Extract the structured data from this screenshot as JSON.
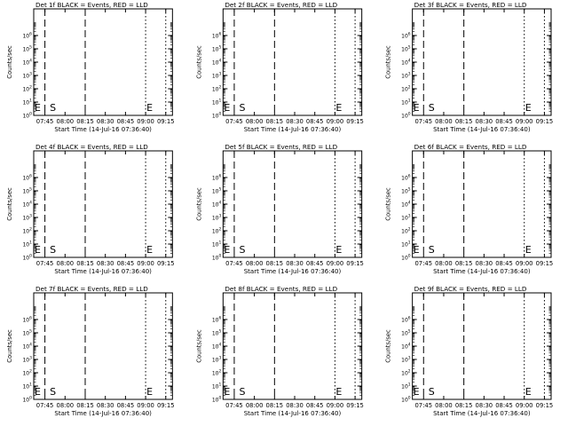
{
  "panel_layout": {
    "rows": 3,
    "cols": 3
  },
  "chart_data": [
    {
      "type": "line",
      "title": "Det 1f BLACK = Events, RED = LLD",
      "xlabel": "Start Time (14-Jul-16 07:36:40)",
      "ylabel": "Counts/sec",
      "xlim": [
        "07:36:40",
        "09:20:00"
      ],
      "yscale": "log",
      "ylim": [
        1,
        100000000
      ],
      "x_ticks": [
        "07:45",
        "08:00",
        "08:15",
        "08:30",
        "08:45",
        "09:00",
        "09:15"
      ],
      "y_ticks": [
        "10^0",
        "10^1",
        "10^2",
        "10^3",
        "10^4",
        "10^5",
        "10^6"
      ],
      "vlines": [
        {
          "time": "07:45",
          "style": "dashed"
        },
        {
          "time": "08:15",
          "style": "dashed"
        },
        {
          "time": "09:00",
          "style": "dotted"
        },
        {
          "time": "09:15",
          "style": "dotted"
        }
      ],
      "annotations": [
        {
          "text": "E",
          "time": "07:36:40"
        },
        {
          "text": "S",
          "time": "07:48"
        },
        {
          "text": "E",
          "time": "09:00"
        }
      ],
      "series": []
    },
    {
      "type": "line",
      "title": "Det 2f BLACK = Events, RED = LLD",
      "xlabel": "Start Time (14-Jul-16 07:36:40)",
      "ylabel": "Counts/sec",
      "xlim": [
        "07:36:40",
        "09:20:00"
      ],
      "yscale": "log",
      "ylim": [
        1,
        100000000
      ],
      "x_ticks": [
        "07:45",
        "08:00",
        "08:15",
        "08:30",
        "08:45",
        "09:00",
        "09:15"
      ],
      "y_ticks": [
        "10^0",
        "10^1",
        "10^2",
        "10^3",
        "10^4",
        "10^5",
        "10^6"
      ],
      "vlines": [
        {
          "time": "07:45",
          "style": "dashed"
        },
        {
          "time": "08:15",
          "style": "dashed"
        },
        {
          "time": "09:00",
          "style": "dotted"
        },
        {
          "time": "09:15",
          "style": "dotted"
        }
      ],
      "annotations": [
        {
          "text": "E",
          "time": "07:36:40"
        },
        {
          "text": "S",
          "time": "07:48"
        },
        {
          "text": "E",
          "time": "09:00"
        }
      ],
      "series": []
    },
    {
      "type": "line",
      "title": "Det 3f BLACK = Events, RED = LLD",
      "xlabel": "Start Time (14-Jul-16 07:36:40)",
      "ylabel": "Counts/sec",
      "xlim": [
        "07:36:40",
        "09:20:00"
      ],
      "yscale": "log",
      "ylim": [
        1,
        100000000
      ],
      "x_ticks": [
        "07:45",
        "08:00",
        "08:15",
        "08:30",
        "08:45",
        "09:00",
        "09:15"
      ],
      "y_ticks": [
        "10^0",
        "10^1",
        "10^2",
        "10^3",
        "10^4",
        "10^5",
        "10^6"
      ],
      "vlines": [
        {
          "time": "07:45",
          "style": "dashed"
        },
        {
          "time": "08:15",
          "style": "dashed"
        },
        {
          "time": "09:00",
          "style": "dotted"
        },
        {
          "time": "09:15",
          "style": "dotted"
        }
      ],
      "annotations": [
        {
          "text": "E",
          "time": "07:36:40"
        },
        {
          "text": "S",
          "time": "07:48"
        },
        {
          "text": "E",
          "time": "09:00"
        }
      ],
      "series": []
    },
    {
      "type": "line",
      "title": "Det 4f BLACK = Events, RED = LLD",
      "xlabel": "Start Time (14-Jul-16 07:36:40)",
      "ylabel": "Counts/sec",
      "xlim": [
        "07:36:40",
        "09:20:00"
      ],
      "yscale": "log",
      "ylim": [
        1,
        100000000
      ],
      "x_ticks": [
        "07:45",
        "08:00",
        "08:15",
        "08:30",
        "08:45",
        "09:00",
        "09:15"
      ],
      "y_ticks": [
        "10^0",
        "10^1",
        "10^2",
        "10^3",
        "10^4",
        "10^5",
        "10^6"
      ],
      "vlines": [
        {
          "time": "07:45",
          "style": "dashed"
        },
        {
          "time": "08:15",
          "style": "dashed"
        },
        {
          "time": "09:00",
          "style": "dotted"
        },
        {
          "time": "09:15",
          "style": "dotted"
        }
      ],
      "annotations": [
        {
          "text": "E",
          "time": "07:36:40"
        },
        {
          "text": "S",
          "time": "07:48"
        },
        {
          "text": "E",
          "time": "09:00"
        }
      ],
      "series": []
    },
    {
      "type": "line",
      "title": "Det 5f BLACK = Events, RED = LLD",
      "xlabel": "Start Time (14-Jul-16 07:36:40)",
      "ylabel": "Counts/sec",
      "xlim": [
        "07:36:40",
        "09:20:00"
      ],
      "yscale": "log",
      "ylim": [
        1,
        100000000
      ],
      "x_ticks": [
        "07:45",
        "08:00",
        "08:15",
        "08:30",
        "08:45",
        "09:00",
        "09:15"
      ],
      "y_ticks": [
        "10^0",
        "10^1",
        "10^2",
        "10^3",
        "10^4",
        "10^5",
        "10^6"
      ],
      "vlines": [
        {
          "time": "07:45",
          "style": "dashed"
        },
        {
          "time": "08:15",
          "style": "dashed"
        },
        {
          "time": "09:00",
          "style": "dotted"
        },
        {
          "time": "09:15",
          "style": "dotted"
        }
      ],
      "annotations": [
        {
          "text": "E",
          "time": "07:36:40"
        },
        {
          "text": "S",
          "time": "07:48"
        },
        {
          "text": "E",
          "time": "09:00"
        }
      ],
      "series": []
    },
    {
      "type": "line",
      "title": "Det 6f BLACK = Events, RED = LLD",
      "xlabel": "Start Time (14-Jul-16 07:36:40)",
      "ylabel": "Counts/sec",
      "xlim": [
        "07:36:40",
        "09:20:00"
      ],
      "yscale": "log",
      "ylim": [
        1,
        100000000
      ],
      "x_ticks": [
        "07:45",
        "08:00",
        "08:15",
        "08:30",
        "08:45",
        "09:00",
        "09:15"
      ],
      "y_ticks": [
        "10^0",
        "10^1",
        "10^2",
        "10^3",
        "10^4",
        "10^5",
        "10^6"
      ],
      "vlines": [
        {
          "time": "07:45",
          "style": "dashed"
        },
        {
          "time": "08:15",
          "style": "dashed"
        },
        {
          "time": "09:00",
          "style": "dotted"
        },
        {
          "time": "09:15",
          "style": "dotted"
        }
      ],
      "annotations": [
        {
          "text": "E",
          "time": "07:36:40"
        },
        {
          "text": "S",
          "time": "07:48"
        },
        {
          "text": "E",
          "time": "09:00"
        }
      ],
      "series": []
    },
    {
      "type": "line",
      "title": "Det 7f BLACK = Events, RED = LLD",
      "xlabel": "Start Time (14-Jul-16 07:36:40)",
      "ylabel": "Counts/sec",
      "xlim": [
        "07:36:40",
        "09:20:00"
      ],
      "yscale": "log",
      "ylim": [
        1,
        100000000
      ],
      "x_ticks": [
        "07:45",
        "08:00",
        "08:15",
        "08:30",
        "08:45",
        "09:00",
        "09:15"
      ],
      "y_ticks": [
        "10^0",
        "10^1",
        "10^2",
        "10^3",
        "10^4",
        "10^5",
        "10^6"
      ],
      "vlines": [
        {
          "time": "07:45",
          "style": "dashed"
        },
        {
          "time": "08:15",
          "style": "dashed"
        },
        {
          "time": "09:00",
          "style": "dotted"
        },
        {
          "time": "09:15",
          "style": "dotted"
        }
      ],
      "annotations": [
        {
          "text": "E",
          "time": "07:36:40"
        },
        {
          "text": "S",
          "time": "07:48"
        },
        {
          "text": "E",
          "time": "09:00"
        }
      ],
      "series": []
    },
    {
      "type": "line",
      "title": "Det 8f BLACK = Events, RED = LLD",
      "xlabel": "Start Time (14-Jul-16 07:36:40)",
      "ylabel": "Counts/sec",
      "xlim": [
        "07:36:40",
        "09:20:00"
      ],
      "yscale": "log",
      "ylim": [
        1,
        100000000
      ],
      "x_ticks": [
        "07:45",
        "08:00",
        "08:15",
        "08:30",
        "08:45",
        "09:00",
        "09:15"
      ],
      "y_ticks": [
        "10^0",
        "10^1",
        "10^2",
        "10^3",
        "10^4",
        "10^5",
        "10^6"
      ],
      "vlines": [
        {
          "time": "07:45",
          "style": "dashed"
        },
        {
          "time": "08:15",
          "style": "dashed"
        },
        {
          "time": "09:00",
          "style": "dotted"
        },
        {
          "time": "09:15",
          "style": "dotted"
        }
      ],
      "annotations": [
        {
          "text": "E",
          "time": "07:36:40"
        },
        {
          "text": "S",
          "time": "07:48"
        },
        {
          "text": "E",
          "time": "09:00"
        }
      ],
      "series": []
    },
    {
      "type": "line",
      "title": "Det 9f BLACK = Events, RED = LLD",
      "xlabel": "Start Time (14-Jul-16 07:36:40)",
      "ylabel": "Counts/sec",
      "xlim": [
        "07:36:40",
        "09:20:00"
      ],
      "yscale": "log",
      "ylim": [
        1,
        100000000
      ],
      "x_ticks": [
        "07:45",
        "08:00",
        "08:15",
        "08:30",
        "08:45",
        "09:00",
        "09:15"
      ],
      "y_ticks": [
        "10^0",
        "10^1",
        "10^2",
        "10^3",
        "10^4",
        "10^5",
        "10^6"
      ],
      "vlines": [
        {
          "time": "07:45",
          "style": "dashed"
        },
        {
          "time": "08:15",
          "style": "dashed"
        },
        {
          "time": "09:00",
          "style": "dotted"
        },
        {
          "time": "09:15",
          "style": "dotted"
        }
      ],
      "annotations": [
        {
          "text": "E",
          "time": "07:36:40"
        },
        {
          "text": "S",
          "time": "07:48"
        },
        {
          "text": "E",
          "time": "09:00"
        }
      ],
      "series": []
    }
  ]
}
